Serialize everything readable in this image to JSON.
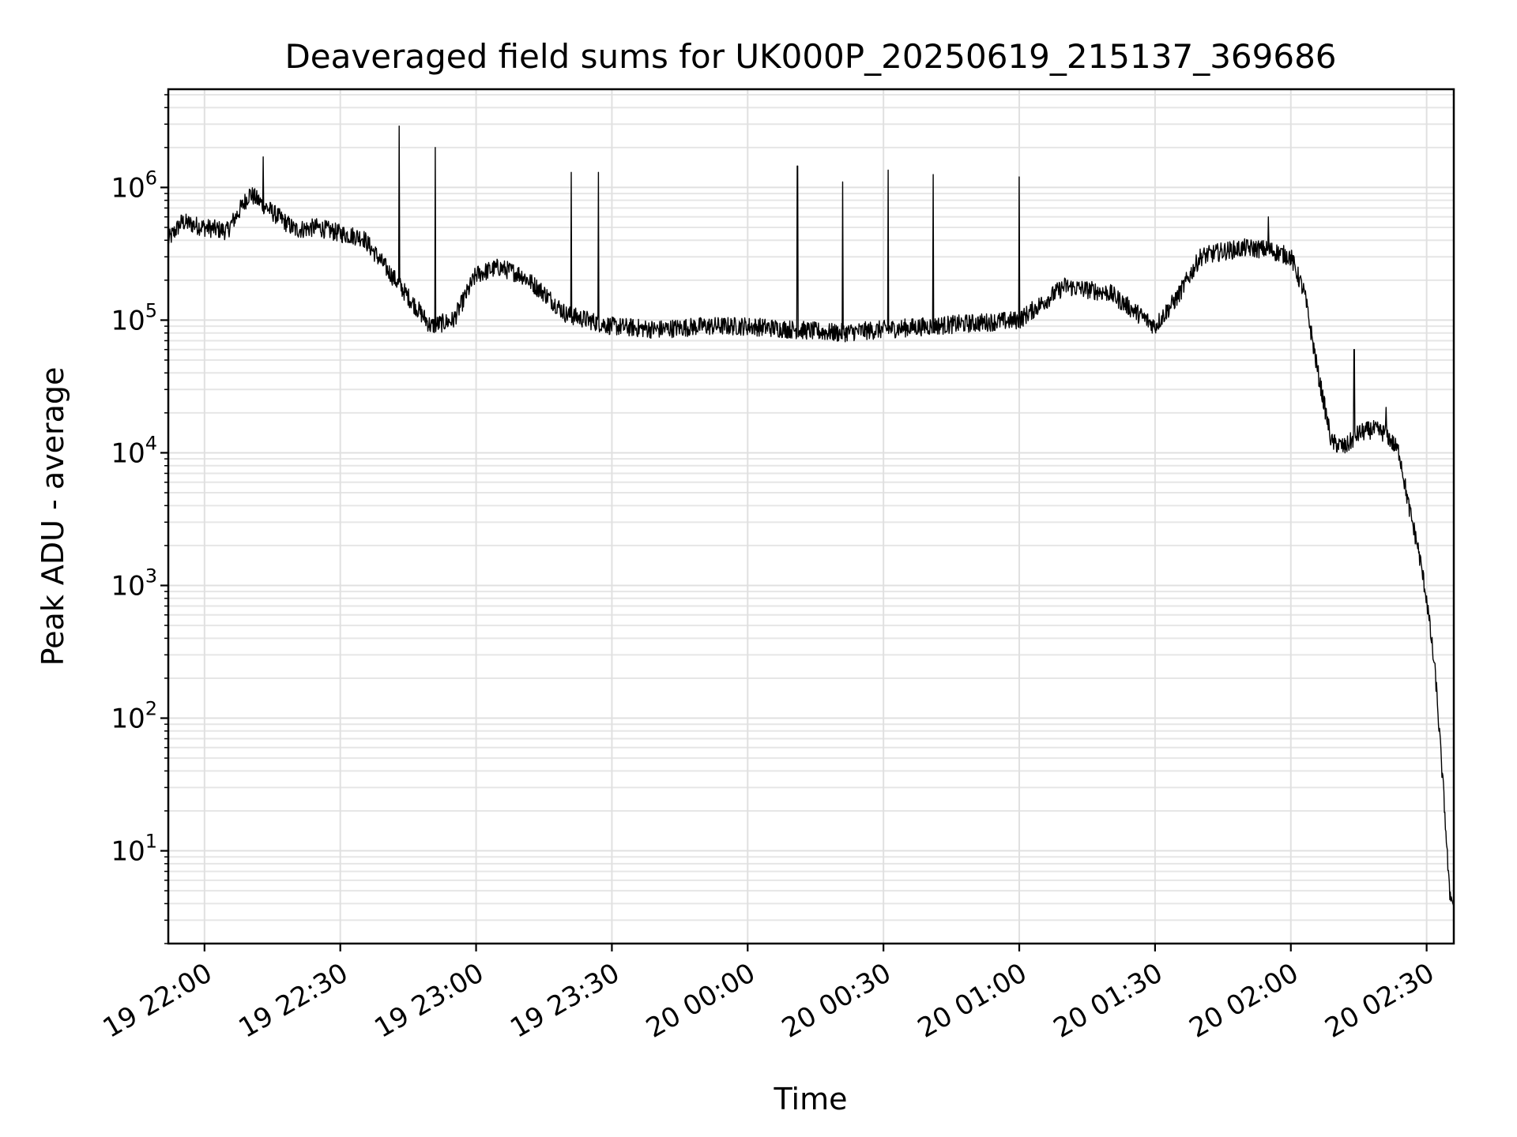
{
  "chart_data": {
    "type": "line",
    "title": "Deaveraged field sums for UK000P_20250619_215137_369686",
    "xlabel": "Time",
    "ylabel": "Peak ADU - average",
    "yscale": "log",
    "grid": true,
    "xlim": [
      "19 21:52",
      "20 02:36"
    ],
    "ylim": [
      2,
      5500000
    ],
    "x_ticks": [
      "19 22:00",
      "19 22:30",
      "19 23:00",
      "19 23:30",
      "20 00:00",
      "20 00:30",
      "20 01:00",
      "20 01:30",
      "20 02:00",
      "20 02:30"
    ],
    "y_ticks": [
      {
        "value": 10,
        "base": "10",
        "exp": "1"
      },
      {
        "value": 100,
        "base": "10",
        "exp": "2"
      },
      {
        "value": 1000,
        "base": "10",
        "exp": "3"
      },
      {
        "value": 10000,
        "base": "10",
        "exp": "4"
      },
      {
        "value": 100000,
        "base": "10",
        "exp": "5"
      },
      {
        "value": 1000000,
        "base": "10",
        "exp": "6"
      }
    ],
    "series": [
      {
        "color": "#000000",
        "x": [
          "19 21:52",
          "19 21:55",
          "19 22:00",
          "19 22:05",
          "19 22:10",
          "19 22:15",
          "19 22:20",
          "19 22:25",
          "19 22:30",
          "19 22:35",
          "19 22:40",
          "19 22:45",
          "19 22:50",
          "19 22:55",
          "19 23:00",
          "19 23:05",
          "19 23:10",
          "19 23:15",
          "19 23:20",
          "19 23:30",
          "19 23:40",
          "19 23:50",
          "20 00:00",
          "20 00:10",
          "20 00:20",
          "20 00:30",
          "20 00:40",
          "20 00:50",
          "20 01:00",
          "20 01:10",
          "20 01:20",
          "20 01:25",
          "20 01:30",
          "20 01:35",
          "20 01:40",
          "20 01:45",
          "20 01:50",
          "20 01:55",
          "20 02:00",
          "20 02:03",
          "20 02:06",
          "20 02:09",
          "20 02:12",
          "20 02:15",
          "20 02:18",
          "20 02:21",
          "20 02:24",
          "20 02:26",
          "20 02:28",
          "20 02:30",
          "20 02:32",
          "20 02:34",
          "20 02:35",
          "20 02:36"
        ],
        "y": [
          400000,
          550000,
          500000,
          470000,
          900000,
          650000,
          480000,
          500000,
          450000,
          420000,
          250000,
          150000,
          90000,
          100000,
          220000,
          250000,
          220000,
          160000,
          110000,
          90000,
          85000,
          90000,
          90000,
          85000,
          80000,
          85000,
          90000,
          95000,
          100000,
          180000,
          160000,
          120000,
          90000,
          150000,
          300000,
          330000,
          350000,
          340000,
          300000,
          160000,
          40000,
          12000,
          11000,
          14000,
          15000,
          14000,
          10000,
          4000,
          2000,
          800,
          200,
          20,
          5,
          3.8
        ],
        "spikes": [
          {
            "x": "19 22:13",
            "y": 1700000
          },
          {
            "x": "19 22:43",
            "y": 2900000
          },
          {
            "x": "19 22:51",
            "y": 2000000
          },
          {
            "x": "19 23:21",
            "y": 1300000
          },
          {
            "x": "19 23:27",
            "y": 1300000
          },
          {
            "x": "20 00:11",
            "y": 1450000
          },
          {
            "x": "20 00:21",
            "y": 1100000
          },
          {
            "x": "20 00:31",
            "y": 1350000
          },
          {
            "x": "20 00:41",
            "y": 1250000
          },
          {
            "x": "20 01:00",
            "y": 1200000
          },
          {
            "x": "20 01:55",
            "y": 600000
          },
          {
            "x": "20 02:14",
            "y": 60000
          },
          {
            "x": "20 02:21",
            "y": 22000
          }
        ]
      }
    ]
  }
}
